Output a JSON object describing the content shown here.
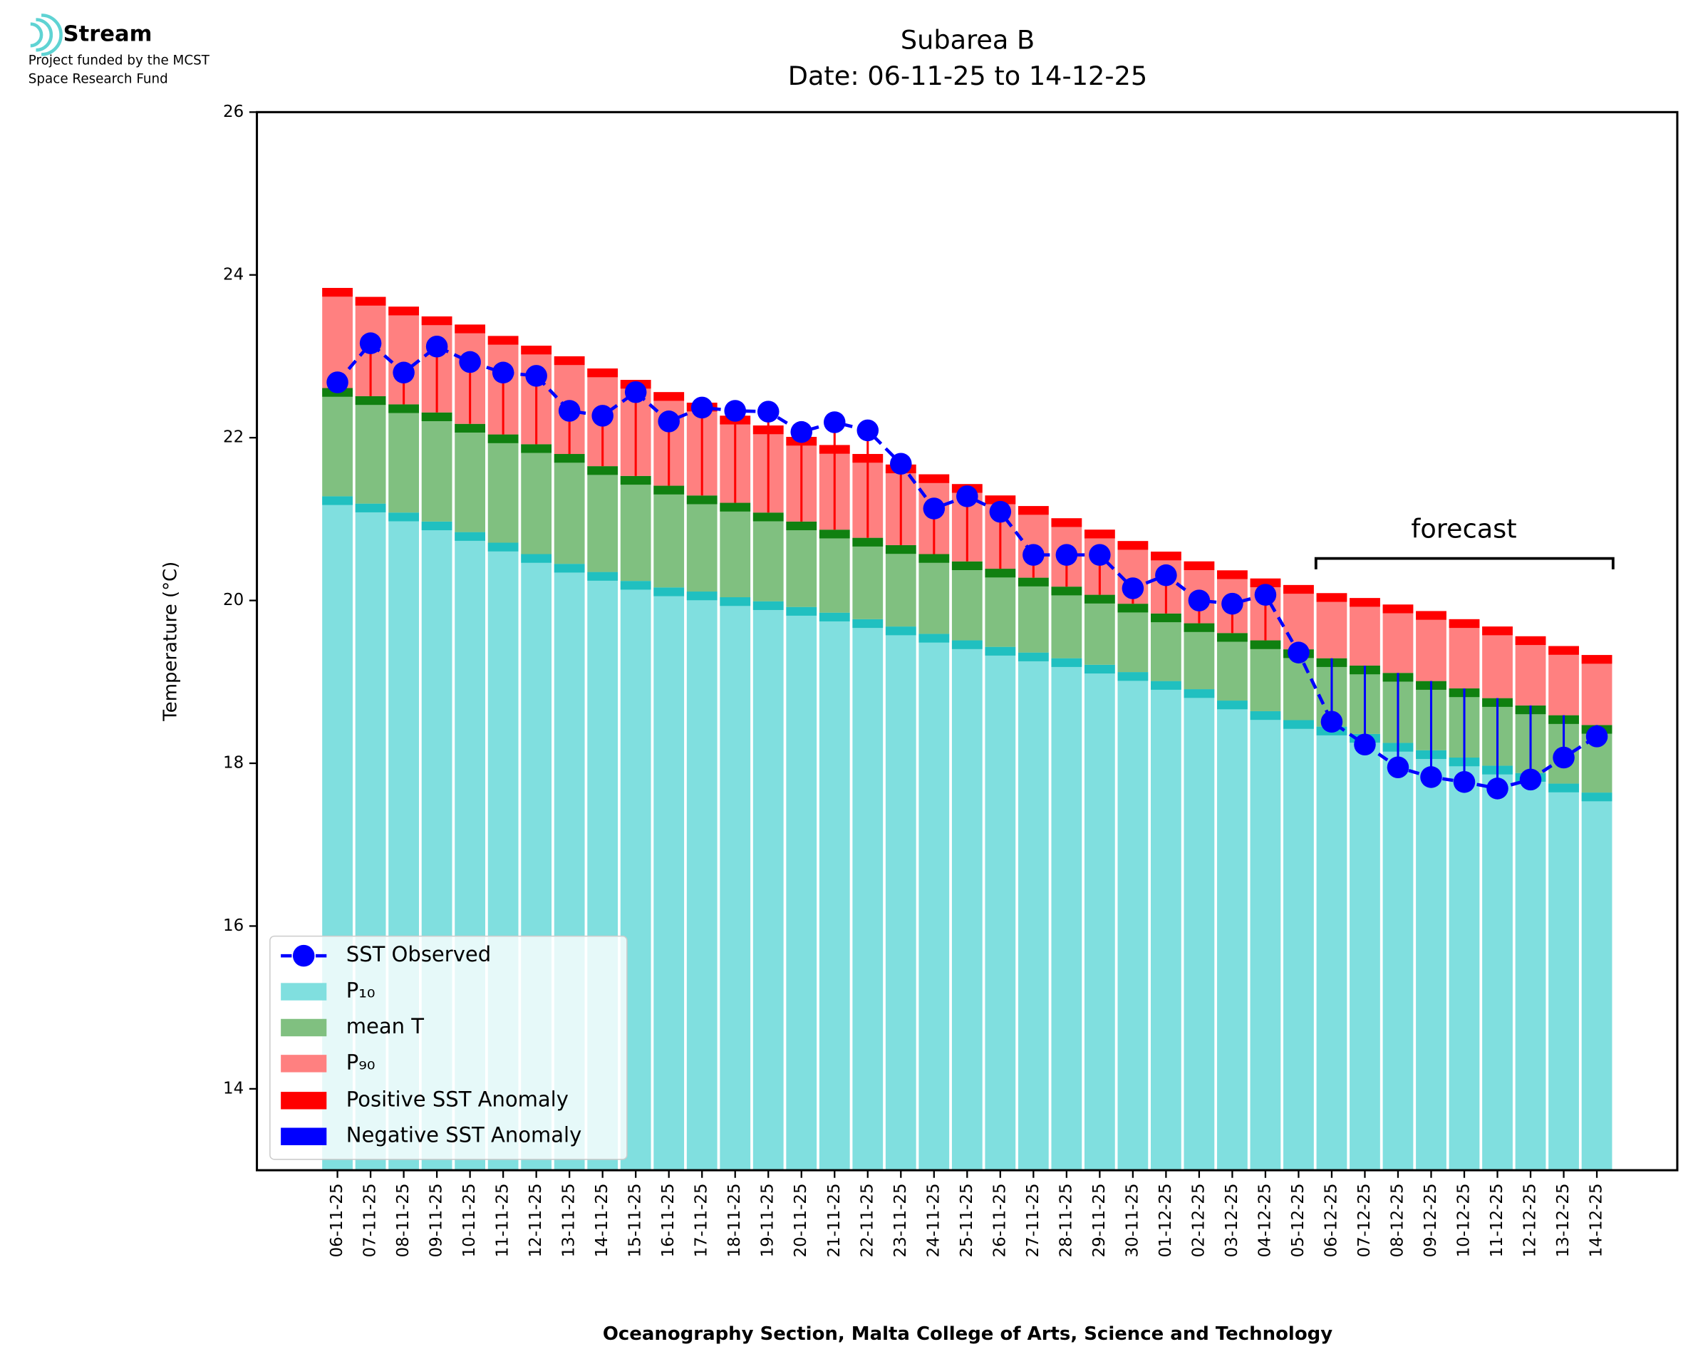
{
  "header": {
    "logo": "Stream",
    "lines": [
      "Project funded by the MCST",
      "Space Research Fund"
    ]
  },
  "chart_data": {
    "type": "bar",
    "title": "Subarea B",
    "subtitle": "Date: 06-11-25 to 14-12-25",
    "xlabel": "Oceanography Section, Malta College of Arts, Science and Technology",
    "ylabel": "Temperature (°C)",
    "annotation": "forecast",
    "categories": [
      "06-11-25",
      "07-11-25",
      "08-11-25",
      "09-11-25",
      "10-11-25",
      "11-11-25",
      "12-11-25",
      "13-11-25",
      "14-11-25",
      "15-11-25",
      "16-11-25",
      "17-11-25",
      "18-11-25",
      "19-11-25",
      "20-11-25",
      "21-11-25",
      "22-11-25",
      "23-11-25",
      "24-11-25",
      "25-11-25",
      "26-11-25",
      "27-11-25",
      "28-11-25",
      "29-11-25",
      "30-11-25",
      "01-12-25",
      "02-12-25",
      "03-12-25",
      "04-12-25",
      "05-12-25",
      "06-12-25",
      "07-12-25",
      "08-12-25",
      "09-12-25",
      "10-12-25",
      "11-12-25",
      "12-12-25",
      "13-12-25",
      "14-12-25"
    ],
    "series": [
      {
        "name": "SST Observed",
        "color": "#0000ff",
        "values": [
          22.68,
          23.16,
          22.8,
          23.12,
          22.93,
          22.8,
          22.76,
          22.33,
          22.27,
          22.56,
          22.2,
          22.37,
          22.33,
          22.32,
          22.07,
          22.19,
          22.09,
          21.68,
          21.13,
          21.28,
          21.09,
          20.56,
          20.56,
          20.56,
          20.15,
          20.31,
          20.0,
          19.96,
          20.07,
          19.36,
          18.51,
          18.23,
          17.95,
          17.83,
          17.77,
          17.69,
          17.8,
          18.07,
          18.33
        ]
      },
      {
        "name": "P₁₀",
        "color": "#80dfdf",
        "cap_color": "#20c0c0",
        "values": [
          21.28,
          21.19,
          21.08,
          20.97,
          20.84,
          20.71,
          20.57,
          20.45,
          20.35,
          20.24,
          20.16,
          20.11,
          20.04,
          19.99,
          19.92,
          19.85,
          19.77,
          19.68,
          19.59,
          19.51,
          19.43,
          19.36,
          19.29,
          19.21,
          19.12,
          19.01,
          18.91,
          18.77,
          18.64,
          18.53,
          18.45,
          18.36,
          18.25,
          18.16,
          18.07,
          17.97,
          17.88,
          17.75,
          17.64
        ]
      },
      {
        "name": "mean T",
        "color": "#80c080",
        "cap_color": "#108010",
        "values": [
          22.61,
          22.51,
          22.41,
          22.31,
          22.17,
          22.04,
          21.92,
          21.8,
          21.65,
          21.53,
          21.41,
          21.29,
          21.2,
          21.08,
          20.97,
          20.87,
          20.77,
          20.68,
          20.57,
          20.48,
          20.39,
          20.28,
          20.17,
          20.07,
          19.96,
          19.84,
          19.72,
          19.6,
          19.51,
          19.4,
          19.29,
          19.2,
          19.11,
          19.01,
          18.92,
          18.8,
          18.71,
          18.59,
          18.47
        ]
      },
      {
        "name": "P₉₀",
        "color": "#ff8080",
        "cap_color": "#ff0000",
        "values": [
          23.84,
          23.73,
          23.61,
          23.49,
          23.39,
          23.25,
          23.13,
          23.0,
          22.85,
          22.71,
          22.56,
          22.43,
          22.27,
          22.15,
          22.01,
          21.91,
          21.8,
          21.67,
          21.55,
          21.43,
          21.29,
          21.16,
          21.01,
          20.87,
          20.73,
          20.6,
          20.48,
          20.37,
          20.27,
          20.19,
          20.09,
          20.03,
          19.95,
          19.87,
          19.77,
          19.68,
          19.56,
          19.44,
          19.33
        ]
      }
    ],
    "anomalies": [
      {
        "name": "Positive SST Anomaly",
        "color": "#ff0000"
      },
      {
        "name": "Negative SST Anomaly",
        "color": "#0000ff"
      }
    ],
    "ylim": [
      13,
      26
    ],
    "yticks": [
      14,
      16,
      18,
      20,
      22,
      24,
      26
    ],
    "legend": "lower left"
  }
}
